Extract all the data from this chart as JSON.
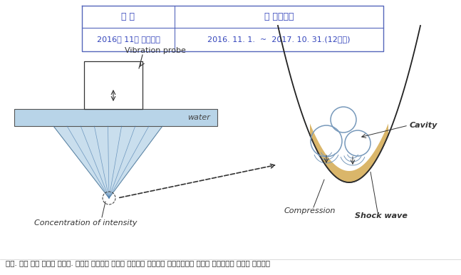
{
  "table_col1_header": "구 분",
  "table_col2_header": "총 연구기간",
  "table_row1_col1": "2016년 11월 개시과제",
  "table_row1_col2": "2016. 11. 1.  ~  2017. 10. 31.(12개월)",
  "table_border_color": "#5566bb",
  "table_text_color": "#3344bb",
  "label_vibration_probe": "Vibration probe",
  "label_water": "water",
  "label_concentration": "Concentration of intensity",
  "label_cavity": "Cavity",
  "label_compression": "Compression",
  "label_shock_wave": "Shock wave",
  "caption": "그림. 노치 선단 피닝의 개념도. 초음파 에너지가 선단에 집중되어 선단에서 캐비테이션을 효과를 극대화하며 따라서 캐비테이",
  "water_color": "#b8d4e8",
  "cone_color": "#b8d4e8",
  "gold_color": "#d4aa50",
  "bg_color": "#ffffff",
  "line_color": "#333333",
  "bubble_color": "#7799bb"
}
